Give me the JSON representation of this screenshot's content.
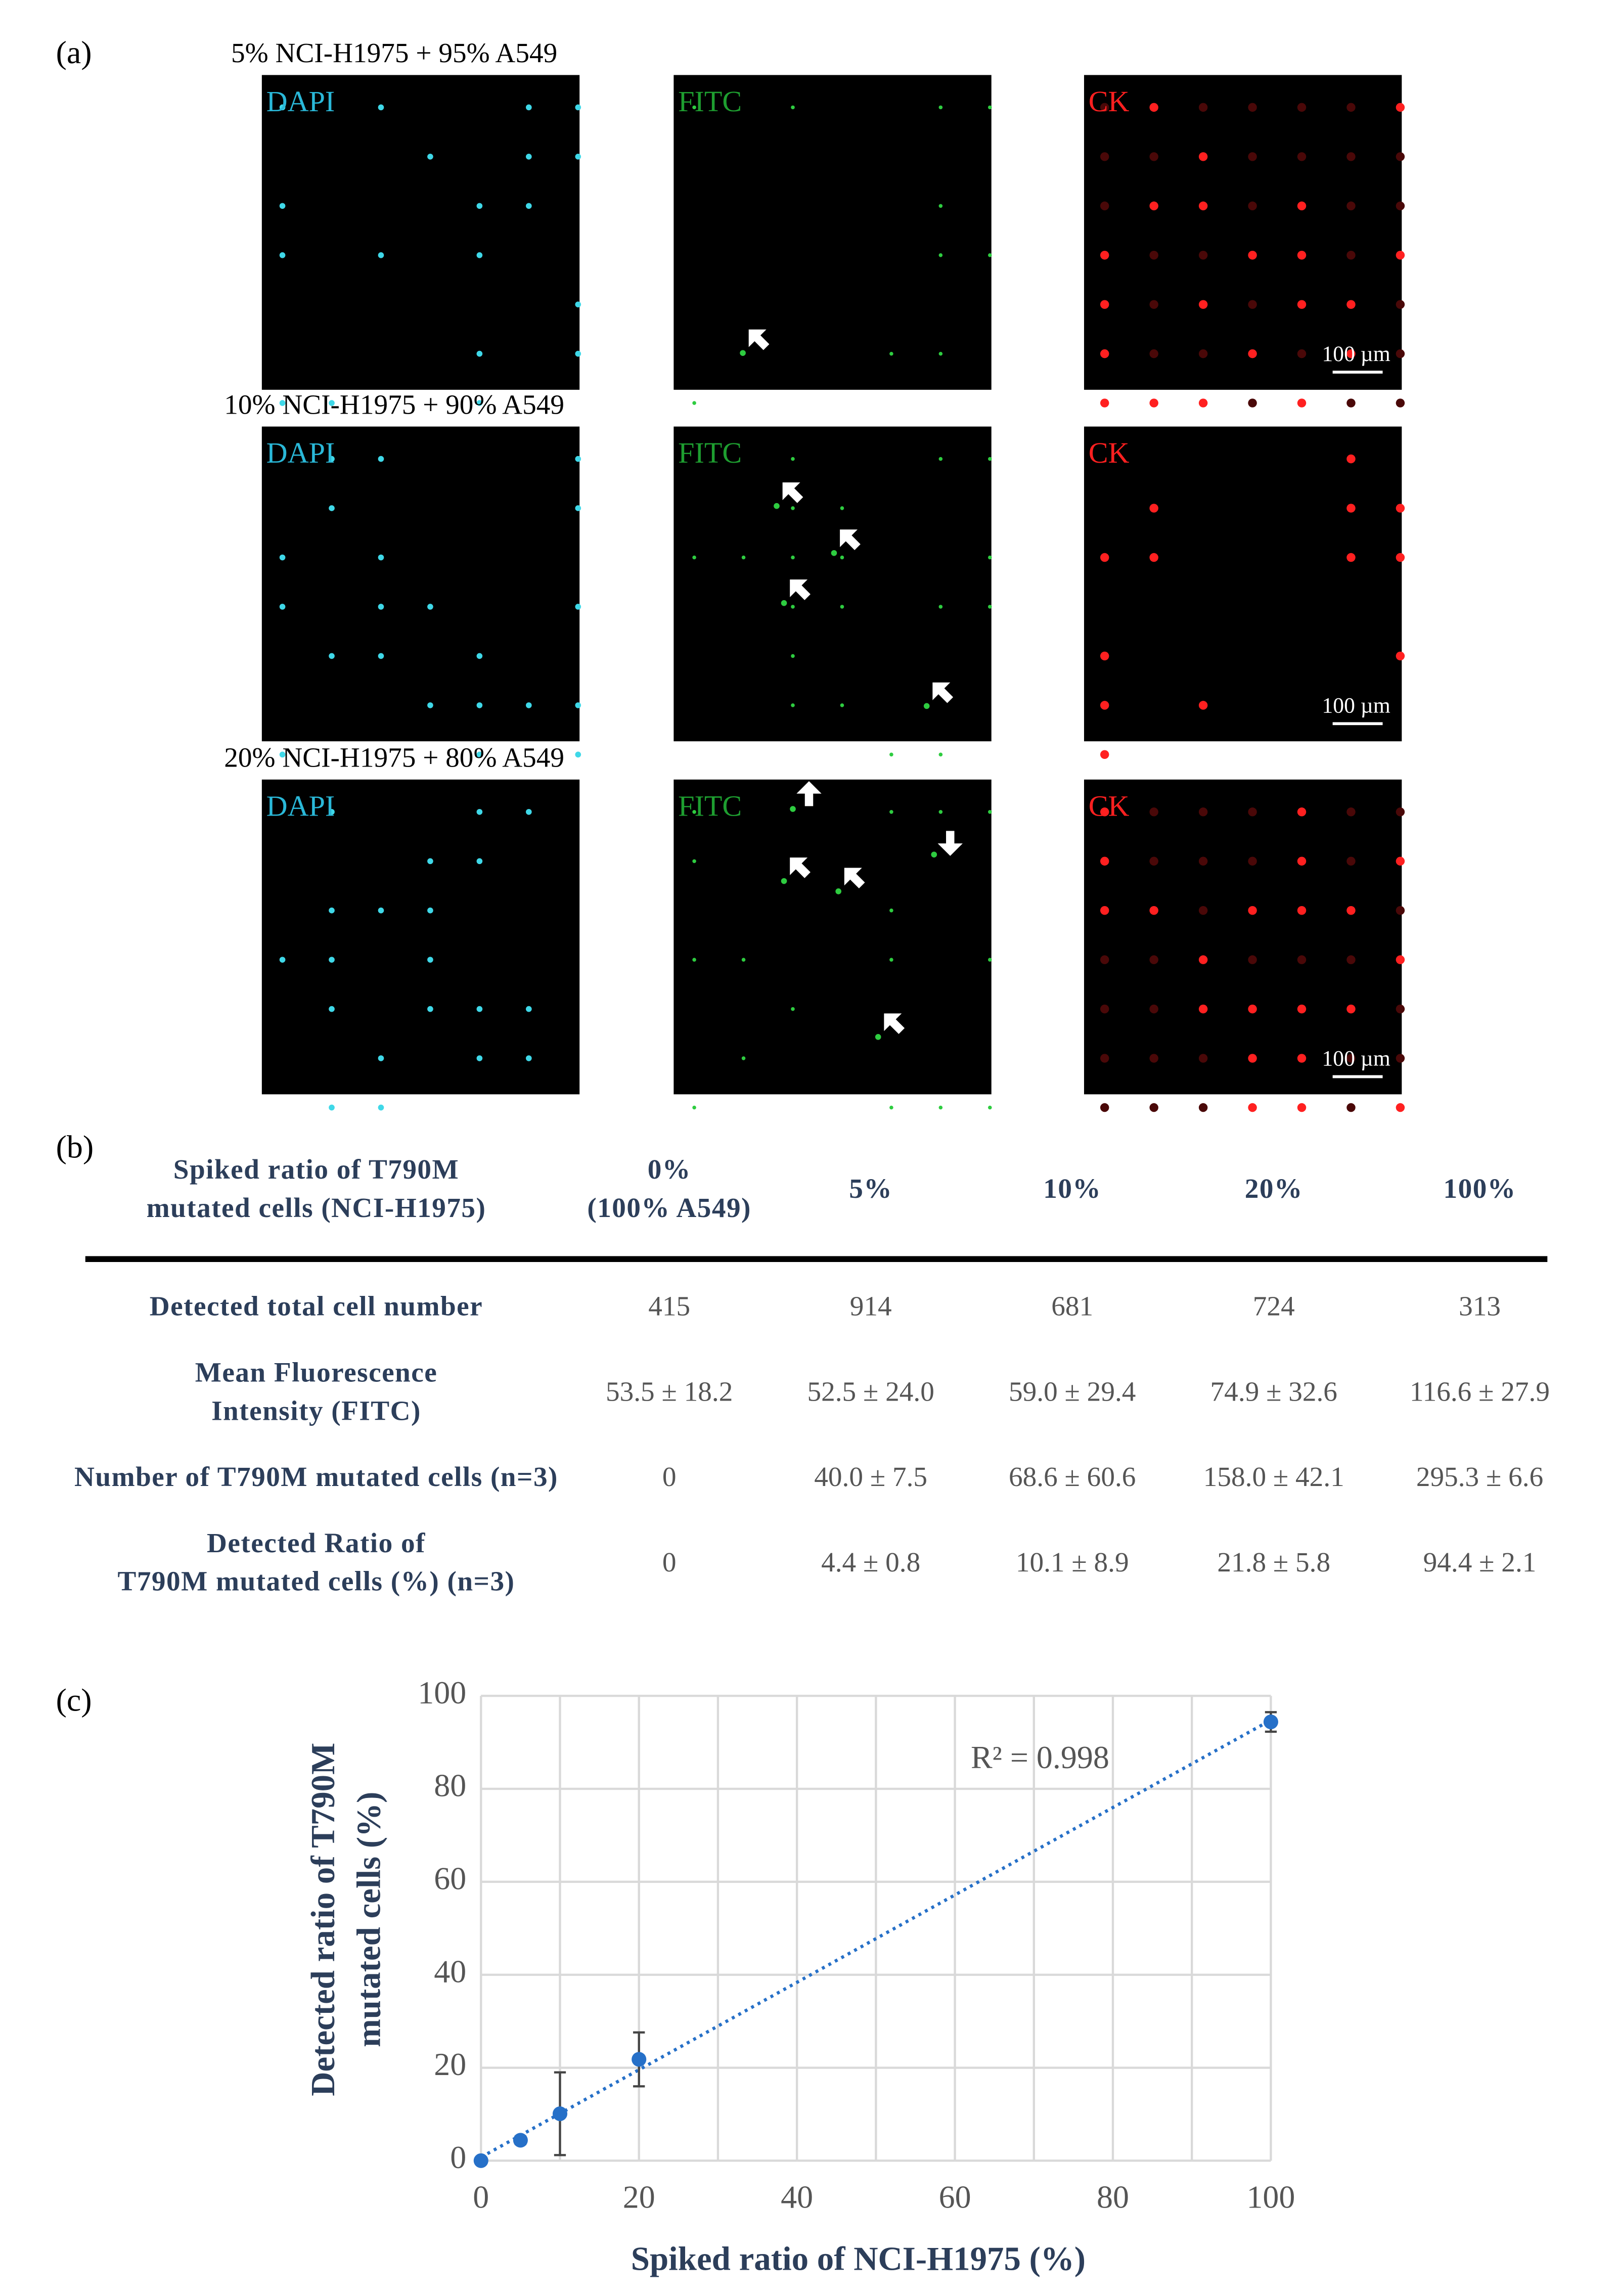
{
  "panel_a": {
    "label": "(a)",
    "rows": [
      {
        "title": "5% NCI-H1975 + 95% A549",
        "channels": [
          "DAPI",
          "FITC",
          "CK"
        ],
        "scale_bar": "100 µm"
      },
      {
        "title": "10% NCI-H1975 + 90% A549",
        "channels": [
          "DAPI",
          "FITC",
          "CK"
        ],
        "scale_bar": "100 µm"
      },
      {
        "title": "20% NCI-H1975 + 80% A549",
        "channels": [
          "DAPI",
          "FITC",
          "CK"
        ],
        "scale_bar": "100 µm"
      }
    ]
  },
  "panel_b": {
    "label": "(b)",
    "table": {
      "header": [
        [
          "Spiked ratio of T790M",
          "mutated cells (NCI-H1975)"
        ],
        [
          "0%",
          "(100% A549)"
        ],
        [
          "5%"
        ],
        [
          "10%"
        ],
        [
          "20%"
        ],
        [
          "100%"
        ]
      ],
      "rows": [
        [
          [
            "Detected total cell number"
          ],
          "415",
          "914",
          "681",
          "724",
          "313"
        ],
        [
          [
            "Mean Fluorescence",
            "Intensity (FITC)"
          ],
          "53.5 ± 18.2",
          "52.5 ± 24.0",
          "59.0 ± 29.4",
          "74.9 ± 32.6",
          "116.6 ± 27.9"
        ],
        [
          [
            "Number of T790M mutated cells (n=3)"
          ],
          "0",
          "40.0 ± 7.5",
          "68.6 ± 60.6",
          "158.0 ± 42.1",
          "295.3 ± 6.6"
        ],
        [
          [
            "Detected Ratio of",
            "T790M mutated cells (%) (n=3)"
          ],
          "0",
          "4.4 ± 0.8",
          "10.1 ± 8.9",
          "21.8 ± 5.8",
          "94.4 ± 2.1"
        ]
      ]
    }
  },
  "chart_data": {
    "type": "scatter",
    "label": "(c)",
    "x_label": "Spiked ratio of NCI-H1975 (%)",
    "y_label": [
      "Detected ratio of T790M",
      "mutated cells (%)"
    ],
    "x": [
      0,
      5,
      10,
      20,
      100
    ],
    "values": [
      0,
      4.4,
      10.1,
      21.8,
      94.4
    ],
    "errors": [
      0,
      0.8,
      8.9,
      5.8,
      2.1
    ],
    "color": "#2670c8",
    "trendline": {
      "style": "dotted",
      "color": "#2670c8"
    },
    "annotation": "R² = 0.998",
    "xlim": [
      0,
      100
    ],
    "ylim": [
      0,
      100
    ],
    "xticks": [
      0,
      20,
      40,
      60,
      80,
      100
    ],
    "yticks": [
      0,
      20,
      40,
      60,
      80,
      100
    ],
    "xgrid": [
      0,
      10,
      20,
      30,
      40,
      50,
      60,
      70,
      80,
      90,
      100
    ],
    "grid": true
  }
}
